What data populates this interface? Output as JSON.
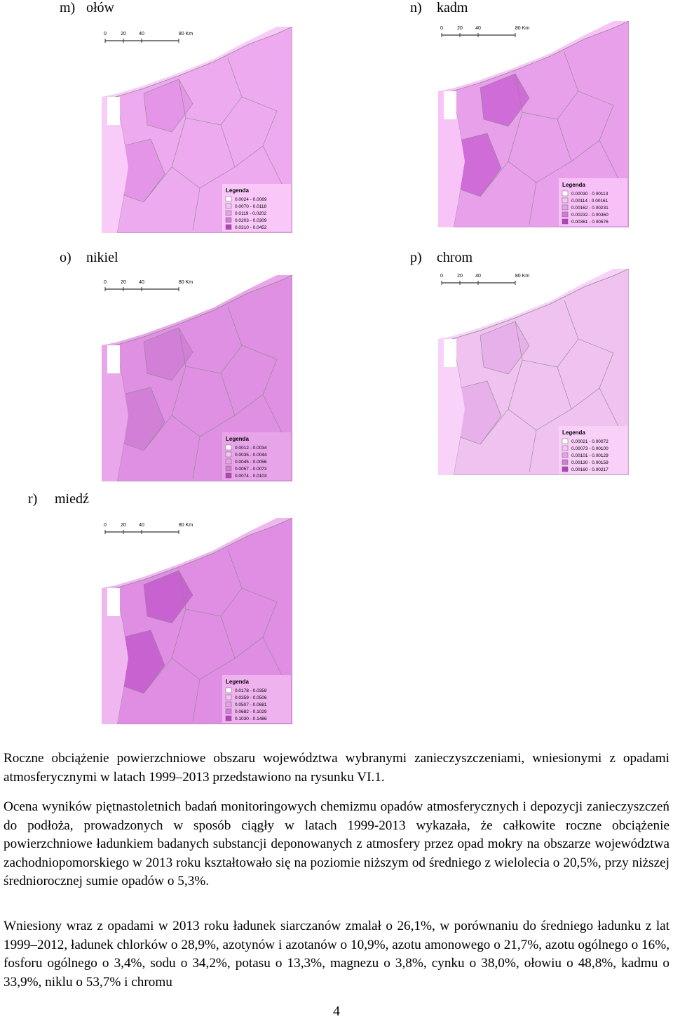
{
  "maps": [
    {
      "label": "m)",
      "title": "ołów",
      "scale": [
        "0",
        "20",
        "40",
        "80 Km"
      ],
      "legend_title": "Legenda",
      "legend": [
        "0.0024 - 0.0069",
        "0.0070 - 0.0118",
        "0.0119 - 0.0202",
        "0.0203 - 0.0309",
        "0.0310 - 0.0452"
      ]
    },
    {
      "label": "n)",
      "title": "kadm",
      "scale": [
        "0",
        "20",
        "40",
        "80 Km"
      ],
      "legend_title": "Legenda",
      "legend": [
        "0.00030 - 0.00113",
        "0.00114 - 0.00161",
        "0.00162 - 0.00231",
        "0.00232 - 0.00360",
        "0.00361 - 0.00576"
      ]
    },
    {
      "label": "o)",
      "title": "nikiel",
      "scale": [
        "0",
        "20",
        "40",
        "80 Km"
      ],
      "legend_title": "Legenda",
      "legend": [
        "0.0012 - 0.0034",
        "0.0035 - 0.0044",
        "0.0045 - 0.0056",
        "0.0057 - 0.0073",
        "0.0074 - 0.0103"
      ]
    },
    {
      "label": "p)",
      "title": "chrom",
      "scale": [
        "0",
        "20",
        "40",
        "80 Km"
      ],
      "legend_title": "Legenda",
      "legend": [
        "0.00021 - 0.00072",
        "0.00073 - 0.00100",
        "0.00101 - 0.00129",
        "0.00130 - 0.00159",
        "0.00160 - 0.00217"
      ]
    },
    {
      "label": "r)",
      "title": "miedź",
      "scale": [
        "0",
        "20",
        "40",
        "80 Km"
      ],
      "legend_title": "Legenda",
      "legend": [
        "0.0178 - 0.0358",
        "0.0359 - 0.0506",
        "0.0507 - 0.0681",
        "0.0682 - 0.1029",
        "0.1030 - 0.1486"
      ]
    }
  ],
  "paragraphs": [
    "Roczne obciążenie powierzchniowe obszaru województwa wybranymi zanieczyszczeniami, wniesionymi z opadami atmosferycznymi w latach 1999–2013 przedstawiono na rysunku VI.1.",
    "Ocena wyników piętnastoletnich badań monitoringowych chemizmu opadów atmosferycznych i depozycji zanieczyszczeń do podłoża, prowadzonych w sposób ciągły w latach 1999-2013 wykazała, że całkowite roczne obciążenie powierzchniowe ładunkiem badanych substancji deponowanych z atmosfery przez opad mokry na obszarze województwa zachodniopomorskiego w 2013 roku kształtowało się na poziomie niższym od średniego z wielolecia o 20,5%, przy niższej średniorocznej sumie opadów o 5,3%.",
    "Wniesiony wraz z opadami w 2013 roku ładunek siarczanów zmalał o 26,1%, w porównaniu do średniego ładunku z lat 1999–2012, ładunek chlorków o 28,9%, azotynów i azotanów o 10,9%, azotu amonowego o 21,7%, azotu ogólnego o 16%, fosforu ogólnego o 3,4%, sodu o 34,2%, potasu o 13,3%, magnezu o 3,8%, cynku o 38,0%, ołowiu o 48,8%, kadmu o 33,9%, niklu o 53,7% i chromu"
  ],
  "page_number": "4"
}
